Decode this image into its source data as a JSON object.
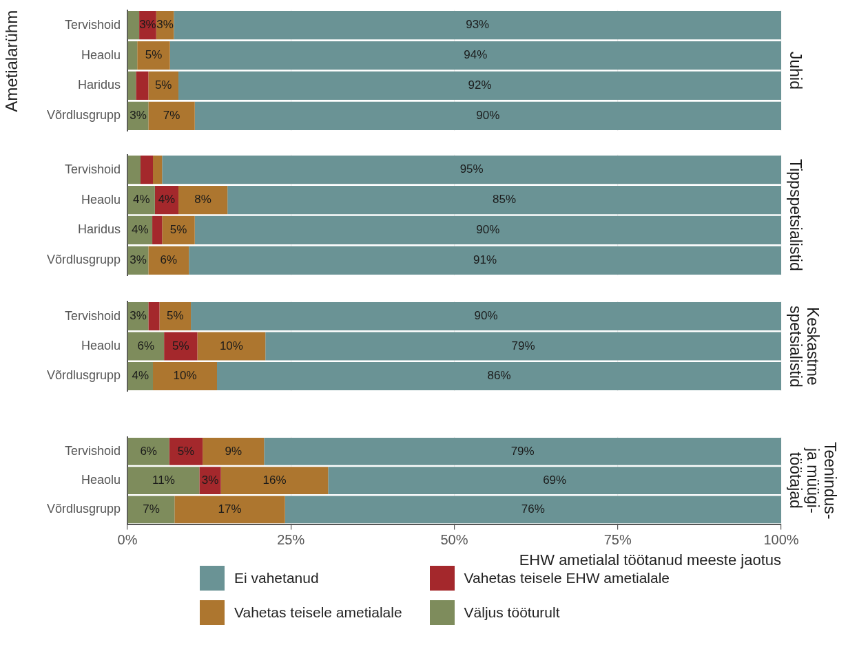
{
  "chart_data": [
    {
      "type": "bar",
      "orientation": "horizontal",
      "stacked": true,
      "title": "Juhid",
      "ylabel": "Ametialarühm",
      "categories": [
        "Tervishoid",
        "Heaolu",
        "Haridus",
        "Võrdlusgrupp"
      ],
      "xlim": [
        0,
        100
      ],
      "xticks": [
        {
          "value": 0,
          "label": null
        },
        {
          "value": 25,
          "label": null
        },
        {
          "value": 50,
          "label": null
        },
        {
          "value": 75,
          "label": null
        },
        {
          "value": 100,
          "label": null
        }
      ],
      "tick_labels": "y",
      "grid": "x",
      "series": [
        {
          "color": "#7e8c5c",
          "values": [
            1.8,
            1.5,
            1.3,
            3.2
          ],
          "value_labels": [
            null,
            null,
            null,
            "3%"
          ]
        },
        {
          "color": "#a4282c",
          "values": [
            2.6,
            0,
            1.9,
            0
          ],
          "value_labels": [
            "3%",
            null,
            null,
            null
          ]
        },
        {
          "color": "#ad762f",
          "values": [
            2.7,
            5.0,
            4.6,
            7.1
          ],
          "value_labels": [
            "3%",
            "5%",
            "5%",
            "7%"
          ]
        },
        {
          "color": "#6a9395",
          "values": [
            92.9,
            93.5,
            92.2,
            89.7
          ],
          "value_labels": [
            "93%",
            "94%",
            "92%",
            "90%"
          ]
        }
      ]
    },
    {
      "type": "bar",
      "orientation": "horizontal",
      "stacked": true,
      "title": "Tippspetsialistid",
      "categories": [
        "Tervishoid",
        "Heaolu",
        "Haridus",
        "Võrdlusgrupp"
      ],
      "xlim": [
        0,
        100
      ],
      "xticks": [
        {
          "value": 0,
          "label": null
        },
        {
          "value": 25,
          "label": null
        },
        {
          "value": 50,
          "label": null
        },
        {
          "value": 75,
          "label": null
        },
        {
          "value": 100,
          "label": null
        }
      ],
      "tick_labels": "y",
      "grid": "x",
      "series": [
        {
          "color": "#7e8c5c",
          "values": [
            2.0,
            4.2,
            3.8,
            3.2
          ],
          "value_labels": [
            null,
            "4%",
            "4%",
            "3%"
          ]
        },
        {
          "color": "#a4282c",
          "values": [
            1.9,
            3.6,
            1.5,
            0
          ],
          "value_labels": [
            null,
            "4%",
            null,
            null
          ]
        },
        {
          "color": "#ad762f",
          "values": [
            1.4,
            7.5,
            5.0,
            6.2
          ],
          "value_labels": [
            null,
            "8%",
            "5%",
            "6%"
          ]
        },
        {
          "color": "#6a9395",
          "values": [
            94.7,
            84.7,
            89.7,
            90.6
          ],
          "value_labels": [
            "95%",
            "85%",
            "90%",
            "91%"
          ]
        }
      ]
    },
    {
      "type": "bar",
      "orientation": "horizontal",
      "stacked": true,
      "title": "Keskastme\nspetsialistid",
      "categories": [
        "Tervishoid",
        "Heaolu",
        "Võrdlusgrupp"
      ],
      "xlim": [
        0,
        100
      ],
      "xticks": [
        {
          "value": 0,
          "label": null
        },
        {
          "value": 25,
          "label": null
        },
        {
          "value": 50,
          "label": null
        },
        {
          "value": 75,
          "label": null
        },
        {
          "value": 100,
          "label": null
        }
      ],
      "tick_labels": "y",
      "grid": "x",
      "series": [
        {
          "color": "#7e8c5c",
          "values": [
            3.2,
            5.6,
            3.9
          ],
          "value_labels": [
            "3%",
            "6%",
            "4%"
          ]
        },
        {
          "color": "#a4282c",
          "values": [
            1.7,
            5.1,
            0
          ],
          "value_labels": [
            null,
            "5%",
            null
          ]
        },
        {
          "color": "#ad762f",
          "values": [
            4.8,
            10.4,
            9.8
          ],
          "value_labels": [
            "5%",
            "10%",
            "10%"
          ]
        },
        {
          "color": "#6a9395",
          "values": [
            90.3,
            78.9,
            86.3
          ],
          "value_labels": [
            "90%",
            "79%",
            "86%"
          ]
        }
      ]
    },
    {
      "type": "bar",
      "orientation": "horizontal",
      "stacked": true,
      "title": "Teenindus-\nja müügi-\ntöötajad",
      "xlabel": "EHW ametialal töötanud meeste jaotus",
      "categories": [
        "Tervishoid",
        "Heaolu",
        "Võrdlusgrupp"
      ],
      "xlim": [
        0,
        100
      ],
      "xticks": [
        {
          "value": 0,
          "label": "0%"
        },
        {
          "value": 25,
          "label": "25%"
        },
        {
          "value": 50,
          "label": "50%"
        },
        {
          "value": 75,
          "label": "75%"
        },
        {
          "value": 100,
          "label": "100%"
        }
      ],
      "grid": "x",
      "legend": "bottom",
      "series": [
        {
          "name": "Väljus tööturult",
          "color": "#7e8c5c",
          "values": [
            6.4,
            11.0,
            7.2
          ],
          "value_labels": [
            "6%",
            "11%",
            "7%"
          ]
        },
        {
          "name": "Vahetas teisele EHW ametialale",
          "color": "#a4282c",
          "values": [
            5.1,
            3.3,
            0
          ],
          "value_labels": [
            "5%",
            "3%",
            null
          ]
        },
        {
          "name": "Vahetas teisele ametialale",
          "color": "#ad762f",
          "values": [
            9.4,
            16.4,
            16.9
          ],
          "value_labels": [
            "9%",
            "16%",
            "17%"
          ]
        },
        {
          "name": "Ei vahetanud",
          "color": "#6a9395",
          "values": [
            79.1,
            69.3,
            75.9
          ],
          "value_labels": [
            "79%",
            "69%",
            "76%"
          ]
        }
      ]
    }
  ]
}
